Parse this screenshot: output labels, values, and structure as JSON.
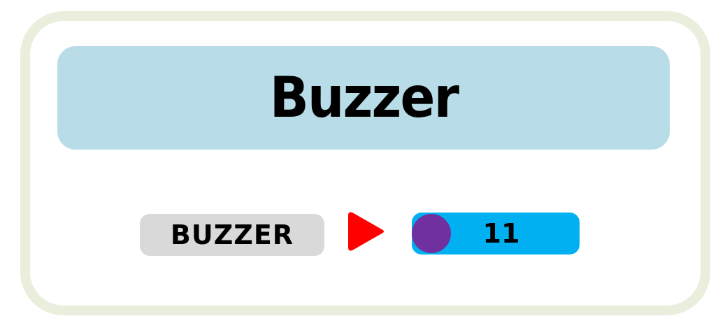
{
  "header": {
    "title": "Buzzer"
  },
  "block": {
    "label": "BUZZER",
    "value": "11",
    "arrow_icon": "play-arrow-icon",
    "dot_icon": "circle-dot-icon"
  },
  "colors": {
    "card_border": "#e9eedd",
    "header_bg": "#b8dde8",
    "label_bg": "#d9d9d9",
    "arrow": "#ff0000",
    "value_bg": "#00b0f0",
    "dot": "#7030a0"
  }
}
